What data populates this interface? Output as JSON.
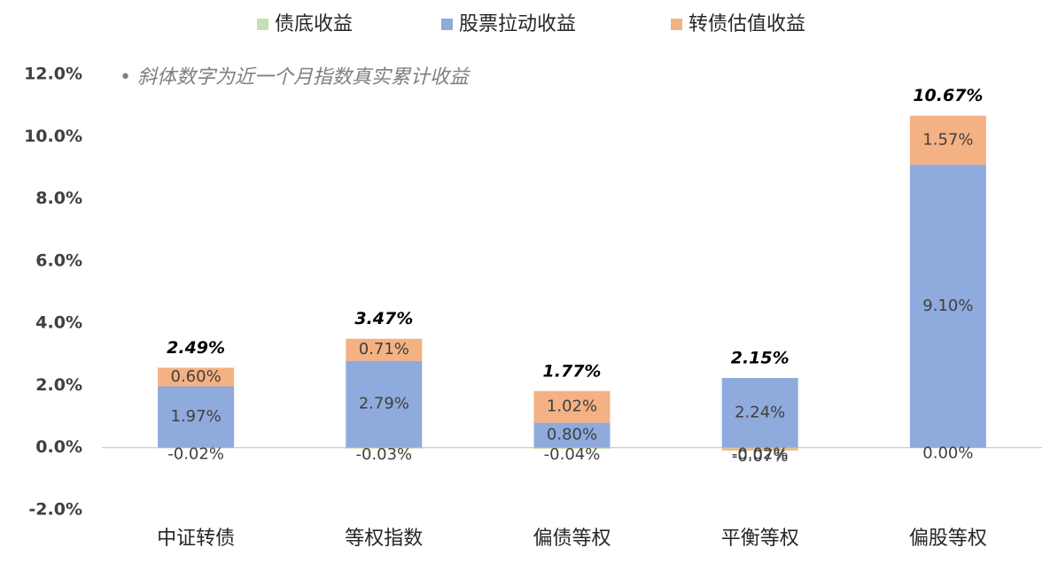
{
  "chart_data": {
    "type": "stacked_bar",
    "annotation": "• 斜体数字为近一个月指数真实累计收益",
    "categories": [
      "中证转债",
      "等权指数",
      "偏债等权",
      "平衡等权",
      "偏股等权"
    ],
    "series": [
      {
        "name": "债底收益",
        "color": "#c5e0b4",
        "values": [
          -0.02,
          -0.03,
          -0.04,
          -0.02,
          0.0
        ],
        "value_labels": [
          "-0.02%",
          "-0.03%",
          "-0.04%",
          "-0.02%",
          "0.00%"
        ]
      },
      {
        "name": "股票拉动收益",
        "color": "#8faadc",
        "values": [
          1.97,
          2.79,
          0.8,
          2.24,
          9.1
        ],
        "value_labels": [
          "1.97%",
          "2.79%",
          "0.80%",
          "2.24%",
          "9.10%"
        ]
      },
      {
        "name": "转债估值收益",
        "color": "#f4b183",
        "values": [
          0.6,
          0.71,
          1.02,
          -0.07,
          1.57
        ],
        "value_labels": [
          "0.60%",
          "0.71%",
          "1.02%",
          "-0.07%",
          "1.57%"
        ]
      }
    ],
    "totals": [
      2.49,
      3.47,
      1.77,
      2.15,
      10.67
    ],
    "total_labels": [
      "2.49%",
      "3.47%",
      "1.77%",
      "2.15%",
      "10.67%"
    ],
    "ylim": [
      -2,
      12
    ],
    "yticks": [
      {
        "value": -2,
        "label": "-2.0%"
      },
      {
        "value": 0,
        "label": "0.0%"
      },
      {
        "value": 2,
        "label": "2.0%"
      },
      {
        "value": 4,
        "label": "4.0%"
      },
      {
        "value": 6,
        "label": "6.0%"
      },
      {
        "value": 8,
        "label": "8.0%"
      },
      {
        "value": 10,
        "label": "10.0%"
      },
      {
        "value": 12,
        "label": "12.0%"
      }
    ],
    "grid": false
  }
}
